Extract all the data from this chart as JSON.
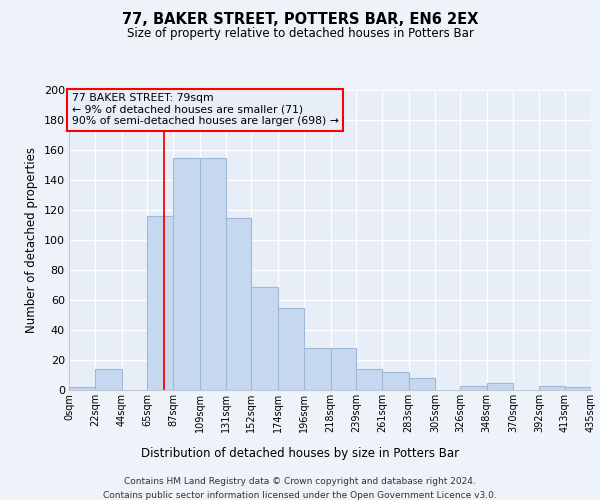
{
  "title": "77, BAKER STREET, POTTERS BAR, EN6 2EX",
  "subtitle": "Size of property relative to detached houses in Potters Bar",
  "xlabel": "Distribution of detached houses by size in Potters Bar",
  "ylabel": "Number of detached properties",
  "footer_line1": "Contains HM Land Registry data © Crown copyright and database right 2024.",
  "footer_line2": "Contains public sector information licensed under the Open Government Licence v3.0.",
  "bar_left_edges": [
    0,
    22,
    44,
    65,
    87,
    109,
    131,
    152,
    174,
    196,
    218,
    239,
    261,
    283,
    305,
    326,
    348,
    370,
    392,
    413
  ],
  "bar_widths": [
    22,
    22,
    21,
    22,
    22,
    22,
    21,
    22,
    22,
    22,
    21,
    22,
    22,
    22,
    21,
    22,
    22,
    22,
    21,
    22
  ],
  "bar_heights": [
    2,
    14,
    0,
    116,
    155,
    155,
    115,
    69,
    55,
    28,
    28,
    14,
    12,
    8,
    0,
    3,
    5,
    0,
    3,
    2
  ],
  "bar_color": "#c5d8f0",
  "bar_edge_color": "#a0b8d8",
  "tick_labels": [
    "0sqm",
    "22sqm",
    "44sqm",
    "65sqm",
    "87sqm",
    "109sqm",
    "131sqm",
    "152sqm",
    "174sqm",
    "196sqm",
    "218sqm",
    "239sqm",
    "261sqm",
    "283sqm",
    "305sqm",
    "326sqm",
    "348sqm",
    "370sqm",
    "392sqm",
    "413sqm",
    "435sqm"
  ],
  "ylim": [
    0,
    200
  ],
  "yticks": [
    0,
    20,
    40,
    60,
    80,
    100,
    120,
    140,
    160,
    180,
    200
  ],
  "property_line_x": 79,
  "annotation_text_line1": "77 BAKER STREET: 79sqm",
  "annotation_text_line2": "← 9% of detached houses are smaller (71)",
  "annotation_text_line3": "90% of semi-detached houses are larger (698) →",
  "bg_color": "#eef2f9",
  "grid_color": "#d0d8e8",
  "plot_bg_color": "#e8eef8"
}
